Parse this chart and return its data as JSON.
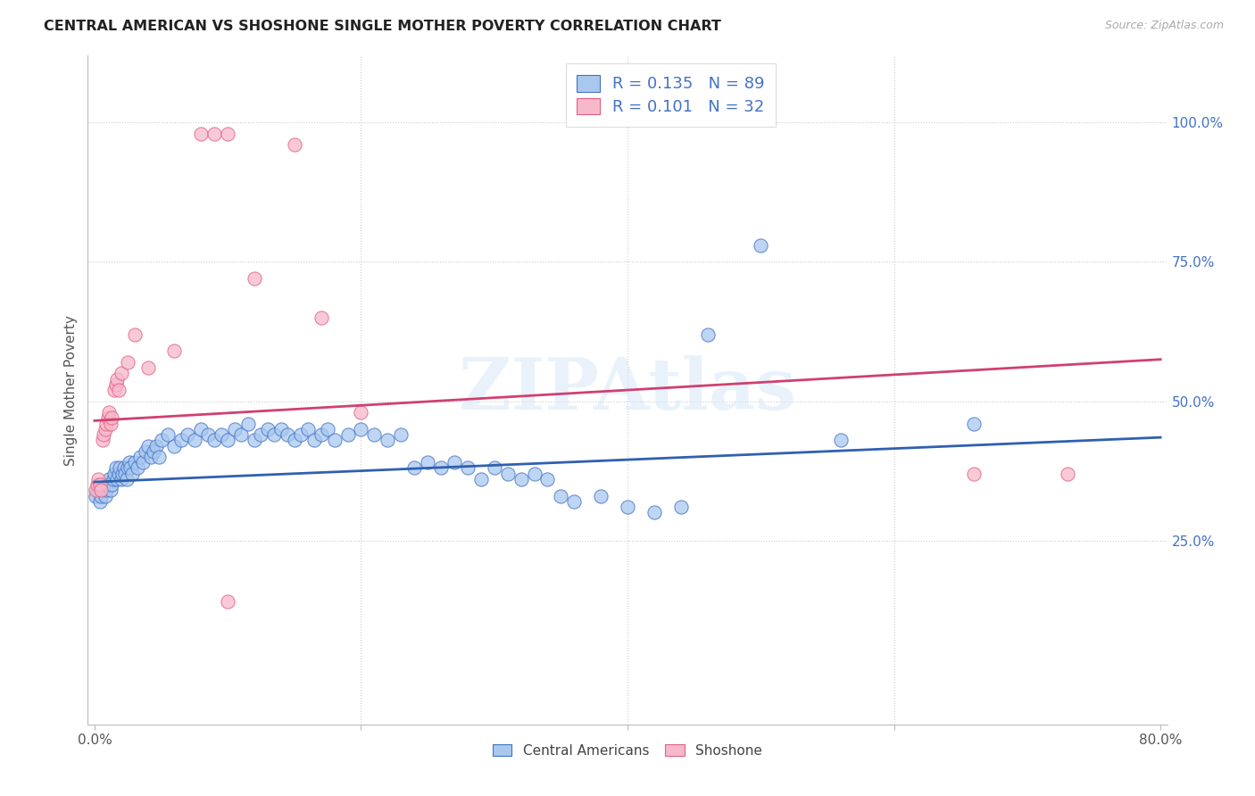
{
  "title": "CENTRAL AMERICAN VS SHOSHONE SINGLE MOTHER POVERTY CORRELATION CHART",
  "source": "Source: ZipAtlas.com",
  "ylabel": "Single Mother Poverty",
  "xlim": [
    -0.005,
    0.805
  ],
  "ylim": [
    -0.08,
    1.12
  ],
  "ytick_positions": [
    0.25,
    0.5,
    0.75,
    1.0
  ],
  "ytick_labels": [
    "25.0%",
    "50.0%",
    "75.0%",
    "100.0%"
  ],
  "xtick_positions": [
    0.0,
    0.2,
    0.4,
    0.6,
    0.8
  ],
  "xtick_labels": [
    "0.0%",
    "",
    "",
    "",
    "80.0%"
  ],
  "watermark": "ZIPAtlas",
  "blue_fill": "#A8C8F0",
  "blue_edge": "#4472C4",
  "pink_fill": "#F8B8CC",
  "pink_edge": "#E06080",
  "blue_line": "#3060B0",
  "pink_line": "#D04070",
  "grid_color": "#CCCCCC",
  "ca_trend_x": [
    0.0,
    0.8
  ],
  "ca_trend_y": [
    0.355,
    0.435
  ],
  "sh_trend_x": [
    0.0,
    0.8
  ],
  "sh_trend_y": [
    0.465,
    0.575
  ],
  "ca_points": [
    [
      0.001,
      0.33
    ],
    [
      0.002,
      0.34
    ],
    [
      0.003,
      0.35
    ],
    [
      0.004,
      0.32
    ],
    [
      0.005,
      0.33
    ],
    [
      0.006,
      0.34
    ],
    [
      0.007,
      0.35
    ],
    [
      0.008,
      0.33
    ],
    [
      0.009,
      0.34
    ],
    [
      0.01,
      0.35
    ],
    [
      0.011,
      0.36
    ],
    [
      0.012,
      0.34
    ],
    [
      0.013,
      0.35
    ],
    [
      0.014,
      0.36
    ],
    [
      0.015,
      0.37
    ],
    [
      0.016,
      0.38
    ],
    [
      0.017,
      0.36
    ],
    [
      0.018,
      0.37
    ],
    [
      0.019,
      0.38
    ],
    [
      0.02,
      0.36
    ],
    [
      0.021,
      0.37
    ],
    [
      0.022,
      0.38
    ],
    [
      0.023,
      0.37
    ],
    [
      0.024,
      0.36
    ],
    [
      0.025,
      0.38
    ],
    [
      0.026,
      0.39
    ],
    [
      0.027,
      0.38
    ],
    [
      0.028,
      0.37
    ],
    [
      0.03,
      0.39
    ],
    [
      0.032,
      0.38
    ],
    [
      0.034,
      0.4
    ],
    [
      0.036,
      0.39
    ],
    [
      0.038,
      0.41
    ],
    [
      0.04,
      0.42
    ],
    [
      0.042,
      0.4
    ],
    [
      0.044,
      0.41
    ],
    [
      0.046,
      0.42
    ],
    [
      0.048,
      0.4
    ],
    [
      0.05,
      0.43
    ],
    [
      0.055,
      0.44
    ],
    [
      0.06,
      0.42
    ],
    [
      0.065,
      0.43
    ],
    [
      0.07,
      0.44
    ],
    [
      0.075,
      0.43
    ],
    [
      0.08,
      0.45
    ],
    [
      0.085,
      0.44
    ],
    [
      0.09,
      0.43
    ],
    [
      0.095,
      0.44
    ],
    [
      0.1,
      0.43
    ],
    [
      0.105,
      0.45
    ],
    [
      0.11,
      0.44
    ],
    [
      0.115,
      0.46
    ],
    [
      0.12,
      0.43
    ],
    [
      0.125,
      0.44
    ],
    [
      0.13,
      0.45
    ],
    [
      0.135,
      0.44
    ],
    [
      0.14,
      0.45
    ],
    [
      0.145,
      0.44
    ],
    [
      0.15,
      0.43
    ],
    [
      0.155,
      0.44
    ],
    [
      0.16,
      0.45
    ],
    [
      0.165,
      0.43
    ],
    [
      0.17,
      0.44
    ],
    [
      0.175,
      0.45
    ],
    [
      0.18,
      0.43
    ],
    [
      0.19,
      0.44
    ],
    [
      0.2,
      0.45
    ],
    [
      0.21,
      0.44
    ],
    [
      0.22,
      0.43
    ],
    [
      0.23,
      0.44
    ],
    [
      0.24,
      0.38
    ],
    [
      0.25,
      0.39
    ],
    [
      0.26,
      0.38
    ],
    [
      0.27,
      0.39
    ],
    [
      0.28,
      0.38
    ],
    [
      0.29,
      0.36
    ],
    [
      0.3,
      0.38
    ],
    [
      0.31,
      0.37
    ],
    [
      0.32,
      0.36
    ],
    [
      0.33,
      0.37
    ],
    [
      0.34,
      0.36
    ],
    [
      0.35,
      0.33
    ],
    [
      0.36,
      0.32
    ],
    [
      0.38,
      0.33
    ],
    [
      0.4,
      0.31
    ],
    [
      0.42,
      0.3
    ],
    [
      0.44,
      0.31
    ],
    [
      0.46,
      0.62
    ],
    [
      0.5,
      0.78
    ],
    [
      0.56,
      0.43
    ],
    [
      0.66,
      0.46
    ]
  ],
  "sh_points": [
    [
      0.001,
      0.34
    ],
    [
      0.002,
      0.35
    ],
    [
      0.003,
      0.36
    ],
    [
      0.004,
      0.35
    ],
    [
      0.005,
      0.34
    ],
    [
      0.006,
      0.43
    ],
    [
      0.007,
      0.44
    ],
    [
      0.008,
      0.45
    ],
    [
      0.009,
      0.46
    ],
    [
      0.01,
      0.47
    ],
    [
      0.011,
      0.48
    ],
    [
      0.012,
      0.46
    ],
    [
      0.013,
      0.47
    ],
    [
      0.015,
      0.52
    ],
    [
      0.016,
      0.53
    ],
    [
      0.017,
      0.54
    ],
    [
      0.018,
      0.52
    ],
    [
      0.02,
      0.55
    ],
    [
      0.025,
      0.57
    ],
    [
      0.03,
      0.62
    ],
    [
      0.04,
      0.56
    ],
    [
      0.06,
      0.59
    ],
    [
      0.08,
      0.98
    ],
    [
      0.09,
      0.98
    ],
    [
      0.1,
      0.98
    ],
    [
      0.12,
      0.72
    ],
    [
      0.15,
      0.96
    ],
    [
      0.17,
      0.65
    ],
    [
      0.2,
      0.48
    ],
    [
      0.1,
      0.14
    ],
    [
      0.66,
      0.37
    ],
    [
      0.73,
      0.37
    ]
  ]
}
